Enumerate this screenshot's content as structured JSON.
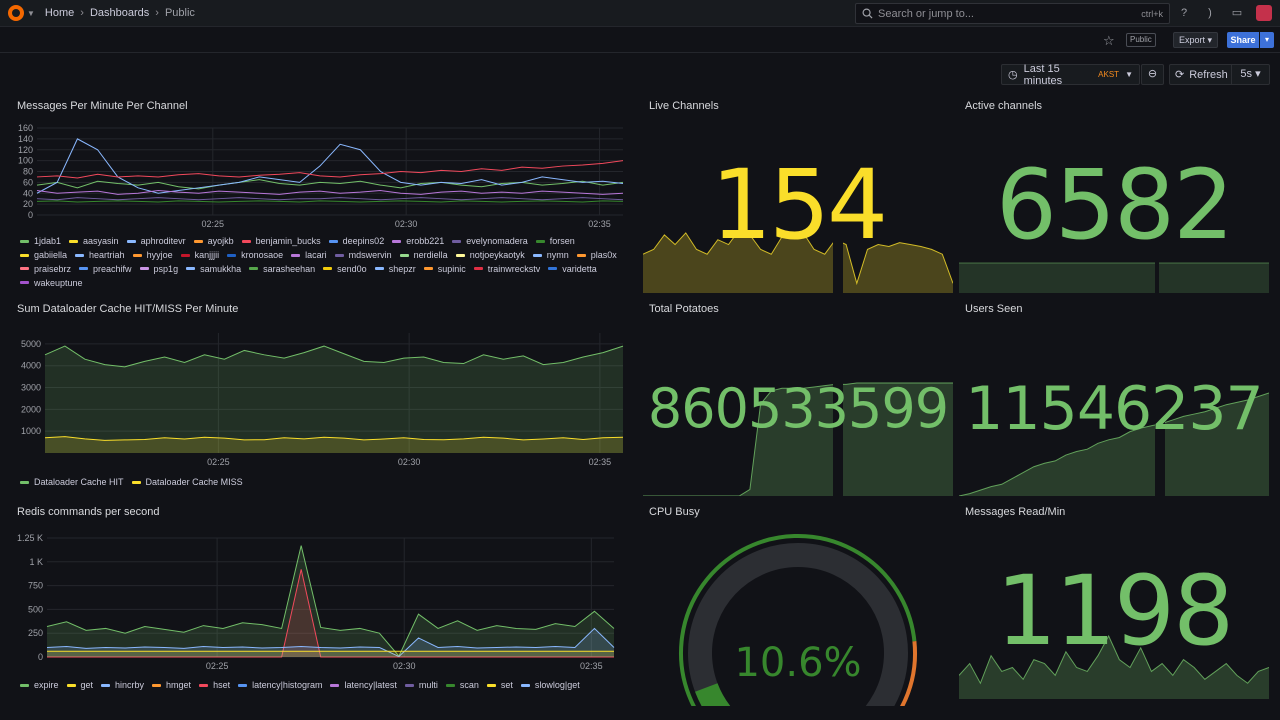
{
  "topbar": {
    "breadcrumbs": [
      "Home",
      "Dashboards",
      "Public"
    ],
    "search_placeholder": "Search or jump to...",
    "search_shortcut": "ctrl+k"
  },
  "actions": {
    "public_badge": "Public",
    "export_label": "Export",
    "share_label": "Share"
  },
  "controls": {
    "time_range": "Last 15 minutes",
    "timezone": "AKST",
    "refresh_label": "Refresh",
    "refresh_interval": "5s"
  },
  "panels": {
    "messages": {
      "title": "Messages Per Minute Per Channel"
    },
    "live_channels": {
      "title": "Live Channels",
      "value": "154",
      "color": "#fade2a"
    },
    "active_channels": {
      "title": "Active channels",
      "value": "6582",
      "color": "#73bf69"
    },
    "dataloader": {
      "title": "Sum Dataloader Cache HIT/MISS Per Minute"
    },
    "total_potatoes": {
      "title": "Total Potatoes",
      "value": "860533599",
      "color": "#73bf69"
    },
    "users_seen": {
      "title": "Users Seen",
      "value": "11546237",
      "color": "#73bf69"
    },
    "redis": {
      "title": "Redis commands per second"
    },
    "cpu_busy": {
      "title": "CPU Busy",
      "value": "10.6%",
      "gauge_fraction": 0.106,
      "color": "#37872d"
    },
    "messages_read": {
      "title": "Messages Read/Min",
      "value": "1198",
      "color": "#73bf69"
    }
  },
  "legends": {
    "messages": [
      {
        "name": "1jdab1",
        "color": "#73bf69"
      },
      {
        "name": "aasyasin",
        "color": "#fade2a"
      },
      {
        "name": "aphroditevr",
        "color": "#8ab8ff"
      },
      {
        "name": "ayojkb",
        "color": "#ff9830"
      },
      {
        "name": "benjamin_bucks",
        "color": "#f2495c"
      },
      {
        "name": "deepins02",
        "color": "#5794f2"
      },
      {
        "name": "erobb221",
        "color": "#b877d9"
      },
      {
        "name": "evelynomadera",
        "color": "#705da0"
      },
      {
        "name": "forsen",
        "color": "#37872d"
      },
      {
        "name": "gabiiella",
        "color": "#fade2a"
      },
      {
        "name": "heartriah",
        "color": "#8ab8ff"
      },
      {
        "name": "hyyjoe",
        "color": "#ff9830"
      },
      {
        "name": "kanjjjii",
        "color": "#c4162a"
      },
      {
        "name": "kronosaoe",
        "color": "#1f60c4"
      },
      {
        "name": "lacari",
        "color": "#b877d9"
      },
      {
        "name": "mdswervin",
        "color": "#705da0"
      },
      {
        "name": "nerdiella",
        "color": "#96d98d"
      },
      {
        "name": "notjoeykaotyk",
        "color": "#fff899"
      },
      {
        "name": "nymn",
        "color": "#8ab8ff"
      },
      {
        "name": "plas0x",
        "color": "#ff9830"
      },
      {
        "name": "praisebrz",
        "color": "#ff7383"
      },
      {
        "name": "preachifw",
        "color": "#5794f2"
      },
      {
        "name": "psp1g",
        "color": "#ca95e5"
      },
      {
        "name": "samukkha",
        "color": "#8ab8ff"
      },
      {
        "name": "sarasheehan",
        "color": "#56a64b"
      },
      {
        "name": "send0o",
        "color": "#f2cc0c"
      },
      {
        "name": "shepzr",
        "color": "#8ab8ff"
      },
      {
        "name": "supinic",
        "color": "#ff9830"
      },
      {
        "name": "trainwreckstv",
        "color": "#e02f44"
      },
      {
        "name": "varidetta",
        "color": "#3274d9"
      },
      {
        "name": "wakeuptune",
        "color": "#a352cc"
      }
    ],
    "dataloader": [
      {
        "name": "Dataloader Cache HIT",
        "color": "#73bf69"
      },
      {
        "name": "Dataloader Cache MISS",
        "color": "#fade2a"
      }
    ],
    "redis": [
      {
        "name": "expire",
        "color": "#73bf69"
      },
      {
        "name": "get",
        "color": "#fade2a"
      },
      {
        "name": "hincrby",
        "color": "#8ab8ff"
      },
      {
        "name": "hmget",
        "color": "#ff9830"
      },
      {
        "name": "hset",
        "color": "#f2495c"
      },
      {
        "name": "latency|histogram",
        "color": "#5794f2"
      },
      {
        "name": "latency|latest",
        "color": "#b877d9"
      },
      {
        "name": "multi",
        "color": "#705da0"
      },
      {
        "name": "scan",
        "color": "#37872d"
      },
      {
        "name": "set",
        "color": "#fade2a"
      },
      {
        "name": "slowlog|get",
        "color": "#8ab8ff"
      }
    ]
  },
  "chart_data": [
    {
      "type": "line",
      "title": "Messages Per Minute Per Channel",
      "xticks": [
        "02:25",
        "02:30",
        "02:35"
      ],
      "ylim": [
        0,
        160
      ],
      "yticks": [
        0,
        20,
        40,
        60,
        80,
        100,
        120,
        140,
        160
      ],
      "x": [
        0,
        1,
        2,
        3,
        4,
        5,
        6,
        7,
        8,
        9,
        10,
        11,
        12,
        13,
        14,
        15,
        16,
        17,
        18,
        19,
        20,
        21,
        22,
        23,
        24,
        25,
        26,
        27,
        28,
        29
      ],
      "series": [
        {
          "name": "1jdab1",
          "values": [
            55,
            60,
            50,
            62,
            58,
            55,
            60,
            52,
            48,
            55,
            60,
            65,
            58,
            55,
            60,
            58,
            62,
            55,
            50,
            58,
            60,
            55,
            52,
            58,
            60,
            55,
            58,
            62,
            55,
            60
          ]
        },
        {
          "name": "aphroditevr",
          "values": [
            40,
            60,
            140,
            120,
            70,
            50,
            40,
            45,
            50,
            55,
            60,
            70,
            65,
            60,
            90,
            130,
            120,
            80,
            60,
            55,
            60,
            58,
            65,
            55,
            60,
            70,
            65,
            60,
            62,
            58
          ]
        },
        {
          "name": "benjamin_bucks",
          "values": [
            70,
            72,
            68,
            75,
            70,
            72,
            70,
            74,
            76,
            72,
            70,
            73,
            75,
            78,
            72,
            70,
            74,
            76,
            80,
            78,
            82,
            80,
            85,
            82,
            88,
            86,
            90,
            92,
            95,
            100
          ]
        },
        {
          "name": "erobb221",
          "values": [
            45,
            40,
            42,
            44,
            38,
            40,
            45,
            42,
            40,
            44,
            42,
            40,
            38,
            42,
            44,
            40,
            42,
            45,
            40,
            38,
            42,
            44,
            40,
            42,
            40,
            44,
            42,
            40,
            38,
            40
          ]
        },
        {
          "name": "evelynomadera",
          "values": [
            30,
            28,
            32,
            30,
            28,
            30,
            32,
            30,
            28,
            30,
            32,
            30,
            28,
            30,
            30,
            32,
            30,
            28,
            30,
            32,
            30,
            28,
            30,
            32,
            30,
            28,
            30,
            32,
            30,
            28
          ]
        },
        {
          "name": "forsen",
          "values": [
            25,
            26,
            24,
            25,
            26,
            25,
            24,
            26,
            25,
            24,
            25,
            26,
            25,
            24,
            26,
            25,
            24,
            25,
            26,
            25,
            24,
            26,
            25,
            24,
            25,
            26,
            25,
            24,
            26,
            25
          ]
        }
      ]
    },
    {
      "type": "line",
      "title": "Sum Dataloader Cache HIT/MISS Per Minute",
      "xticks": [
        "02:25",
        "02:30",
        "02:35"
      ],
      "ylim": [
        0,
        5500
      ],
      "yticks": [
        1000,
        2000,
        3000,
        4000,
        5000
      ],
      "x": [
        0,
        1,
        2,
        3,
        4,
        5,
        6,
        7,
        8,
        9,
        10,
        11,
        12,
        13,
        14,
        15,
        16,
        17,
        18,
        19,
        20,
        21,
        22,
        23,
        24,
        25,
        26,
        27,
        28,
        29
      ],
      "series": [
        {
          "name": "Dataloader Cache HIT",
          "values": [
            4500,
            4900,
            4300,
            4050,
            3950,
            4200,
            4400,
            4150,
            4500,
            4300,
            4700,
            4500,
            4350,
            4600,
            4900,
            4550,
            4200,
            4150,
            4350,
            4400,
            4150,
            4100,
            4500,
            4300,
            4450,
            4050,
            4150,
            4400,
            4600,
            4900
          ]
        },
        {
          "name": "Dataloader Cache MISS",
          "values": [
            700,
            750,
            650,
            580,
            600,
            620,
            700,
            640,
            720,
            680,
            600,
            610,
            700,
            650,
            720,
            680,
            600,
            640,
            700,
            620,
            610,
            650,
            720,
            680,
            600,
            640,
            700,
            620,
            700,
            720
          ]
        }
      ]
    },
    {
      "type": "area",
      "title": "Redis commands per second",
      "xticks": [
        "02:25",
        "02:30",
        "02:35"
      ],
      "ylim": [
        0,
        1250
      ],
      "yticks": [
        0,
        250,
        500,
        750,
        1000,
        1250
      ],
      "ytick_labels": [
        "0",
        "250",
        "500",
        "750",
        "1 K",
        "1.25 K"
      ],
      "x": [
        0,
        1,
        2,
        3,
        4,
        5,
        6,
        7,
        8,
        9,
        10,
        11,
        12,
        13,
        14,
        15,
        16,
        17,
        18,
        19,
        20,
        21,
        22,
        23,
        24,
        25,
        26,
        27,
        28,
        29
      ],
      "series": [
        {
          "name": "expire",
          "values": [
            320,
            370,
            280,
            300,
            250,
            320,
            290,
            260,
            330,
            300,
            360,
            340,
            300,
            1170,
            310,
            280,
            300,
            250,
            10,
            450,
            300,
            380,
            280,
            330,
            300,
            290,
            350,
            320,
            480,
            300
          ]
        },
        {
          "name": "hset",
          "values": [
            0,
            0,
            0,
            0,
            0,
            0,
            0,
            0,
            0,
            0,
            0,
            0,
            0,
            920,
            0,
            0,
            0,
            0,
            0,
            0,
            0,
            0,
            0,
            0,
            0,
            0,
            0,
            0,
            0,
            0
          ]
        },
        {
          "name": "hincrby",
          "values": [
            100,
            110,
            90,
            100,
            95,
            105,
            100,
            90,
            110,
            100,
            105,
            95,
            100,
            110,
            100,
            95,
            105,
            100,
            5,
            200,
            100,
            110,
            95,
            100,
            105,
            100,
            110,
            100,
            300,
            100
          ]
        },
        {
          "name": "get",
          "values": [
            60,
            60,
            60,
            60,
            60,
            60,
            60,
            60,
            60,
            60,
            60,
            60,
            60,
            60,
            60,
            60,
            60,
            60,
            60,
            60,
            60,
            60,
            60,
            60,
            60,
            60,
            60,
            60,
            60,
            60
          ]
        }
      ]
    },
    {
      "type": "area",
      "title": "Live Channels sparkline",
      "values": [
        40,
        45,
        60,
        50,
        62,
        45,
        40,
        55,
        50,
        65,
        60,
        45,
        40,
        58,
        60,
        62,
        45,
        40,
        55,
        50,
        10,
        45,
        50,
        48,
        52,
        50,
        48,
        45,
        40,
        10
      ]
    },
    {
      "type": "area",
      "title": "Total Potatoes sparkline",
      "values": [
        0,
        0,
        0,
        0,
        0,
        0,
        0,
        0,
        0,
        0,
        5,
        70,
        80,
        82,
        82,
        82,
        83,
        84,
        85,
        85,
        86,
        86,
        86,
        86,
        86,
        86,
        86,
        86,
        86,
        86
      ]
    },
    {
      "type": "area",
      "title": "Users Seen sparkline",
      "values": [
        0,
        2,
        5,
        8,
        10,
        15,
        20,
        25,
        28,
        30,
        35,
        38,
        40,
        45,
        48,
        50,
        55,
        58,
        60,
        62,
        65,
        68,
        70,
        72,
        75,
        78,
        80,
        82,
        85,
        88
      ]
    },
    {
      "type": "area",
      "title": "Messages Read/Min sparkline",
      "values": [
        30,
        45,
        20,
        55,
        35,
        40,
        25,
        50,
        45,
        30,
        60,
        40,
        35,
        55,
        80,
        50,
        40,
        65,
        35,
        45,
        30,
        50,
        40,
        25,
        35,
        45,
        30,
        20,
        35,
        40
      ]
    }
  ]
}
